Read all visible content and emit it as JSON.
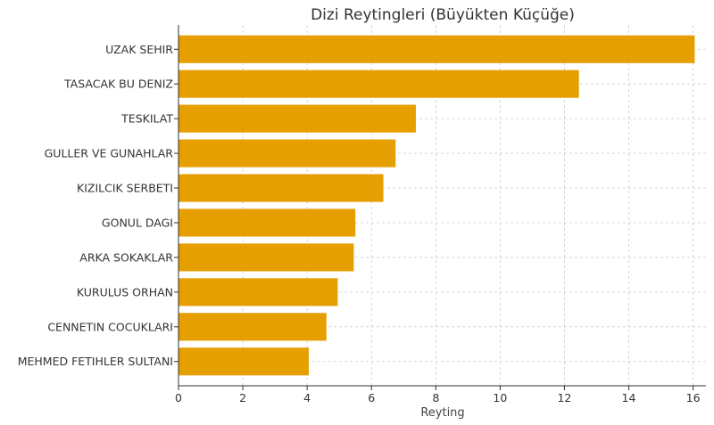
{
  "chart_data": {
    "type": "bar",
    "orientation": "horizontal",
    "title": "Dizi Reytingleri (Büyükten Küçüğe)",
    "xlabel": "Reyting",
    "ylabel": "",
    "xlim": [
      0,
      16.4
    ],
    "xticks": [
      0,
      2,
      4,
      6,
      8,
      10,
      12,
      14,
      16
    ],
    "grid": true,
    "bar_color": "#E69F00",
    "categories": [
      "UZAK SEHIR",
      "TASACAK BU DENIZ",
      "TESKILAT",
      "GULLER VE GUNAHLAR",
      "KIZILCIK SERBETI",
      "GONUL DAGI",
      "ARKA SOKAKLAR",
      "KURULUS ORHAN",
      "CENNETIN COCUKLARI",
      "MEHMED FETIHLER SULTANI"
    ],
    "values": [
      16.05,
      12.45,
      7.38,
      6.75,
      6.37,
      5.5,
      5.45,
      4.95,
      4.6,
      4.05
    ]
  }
}
